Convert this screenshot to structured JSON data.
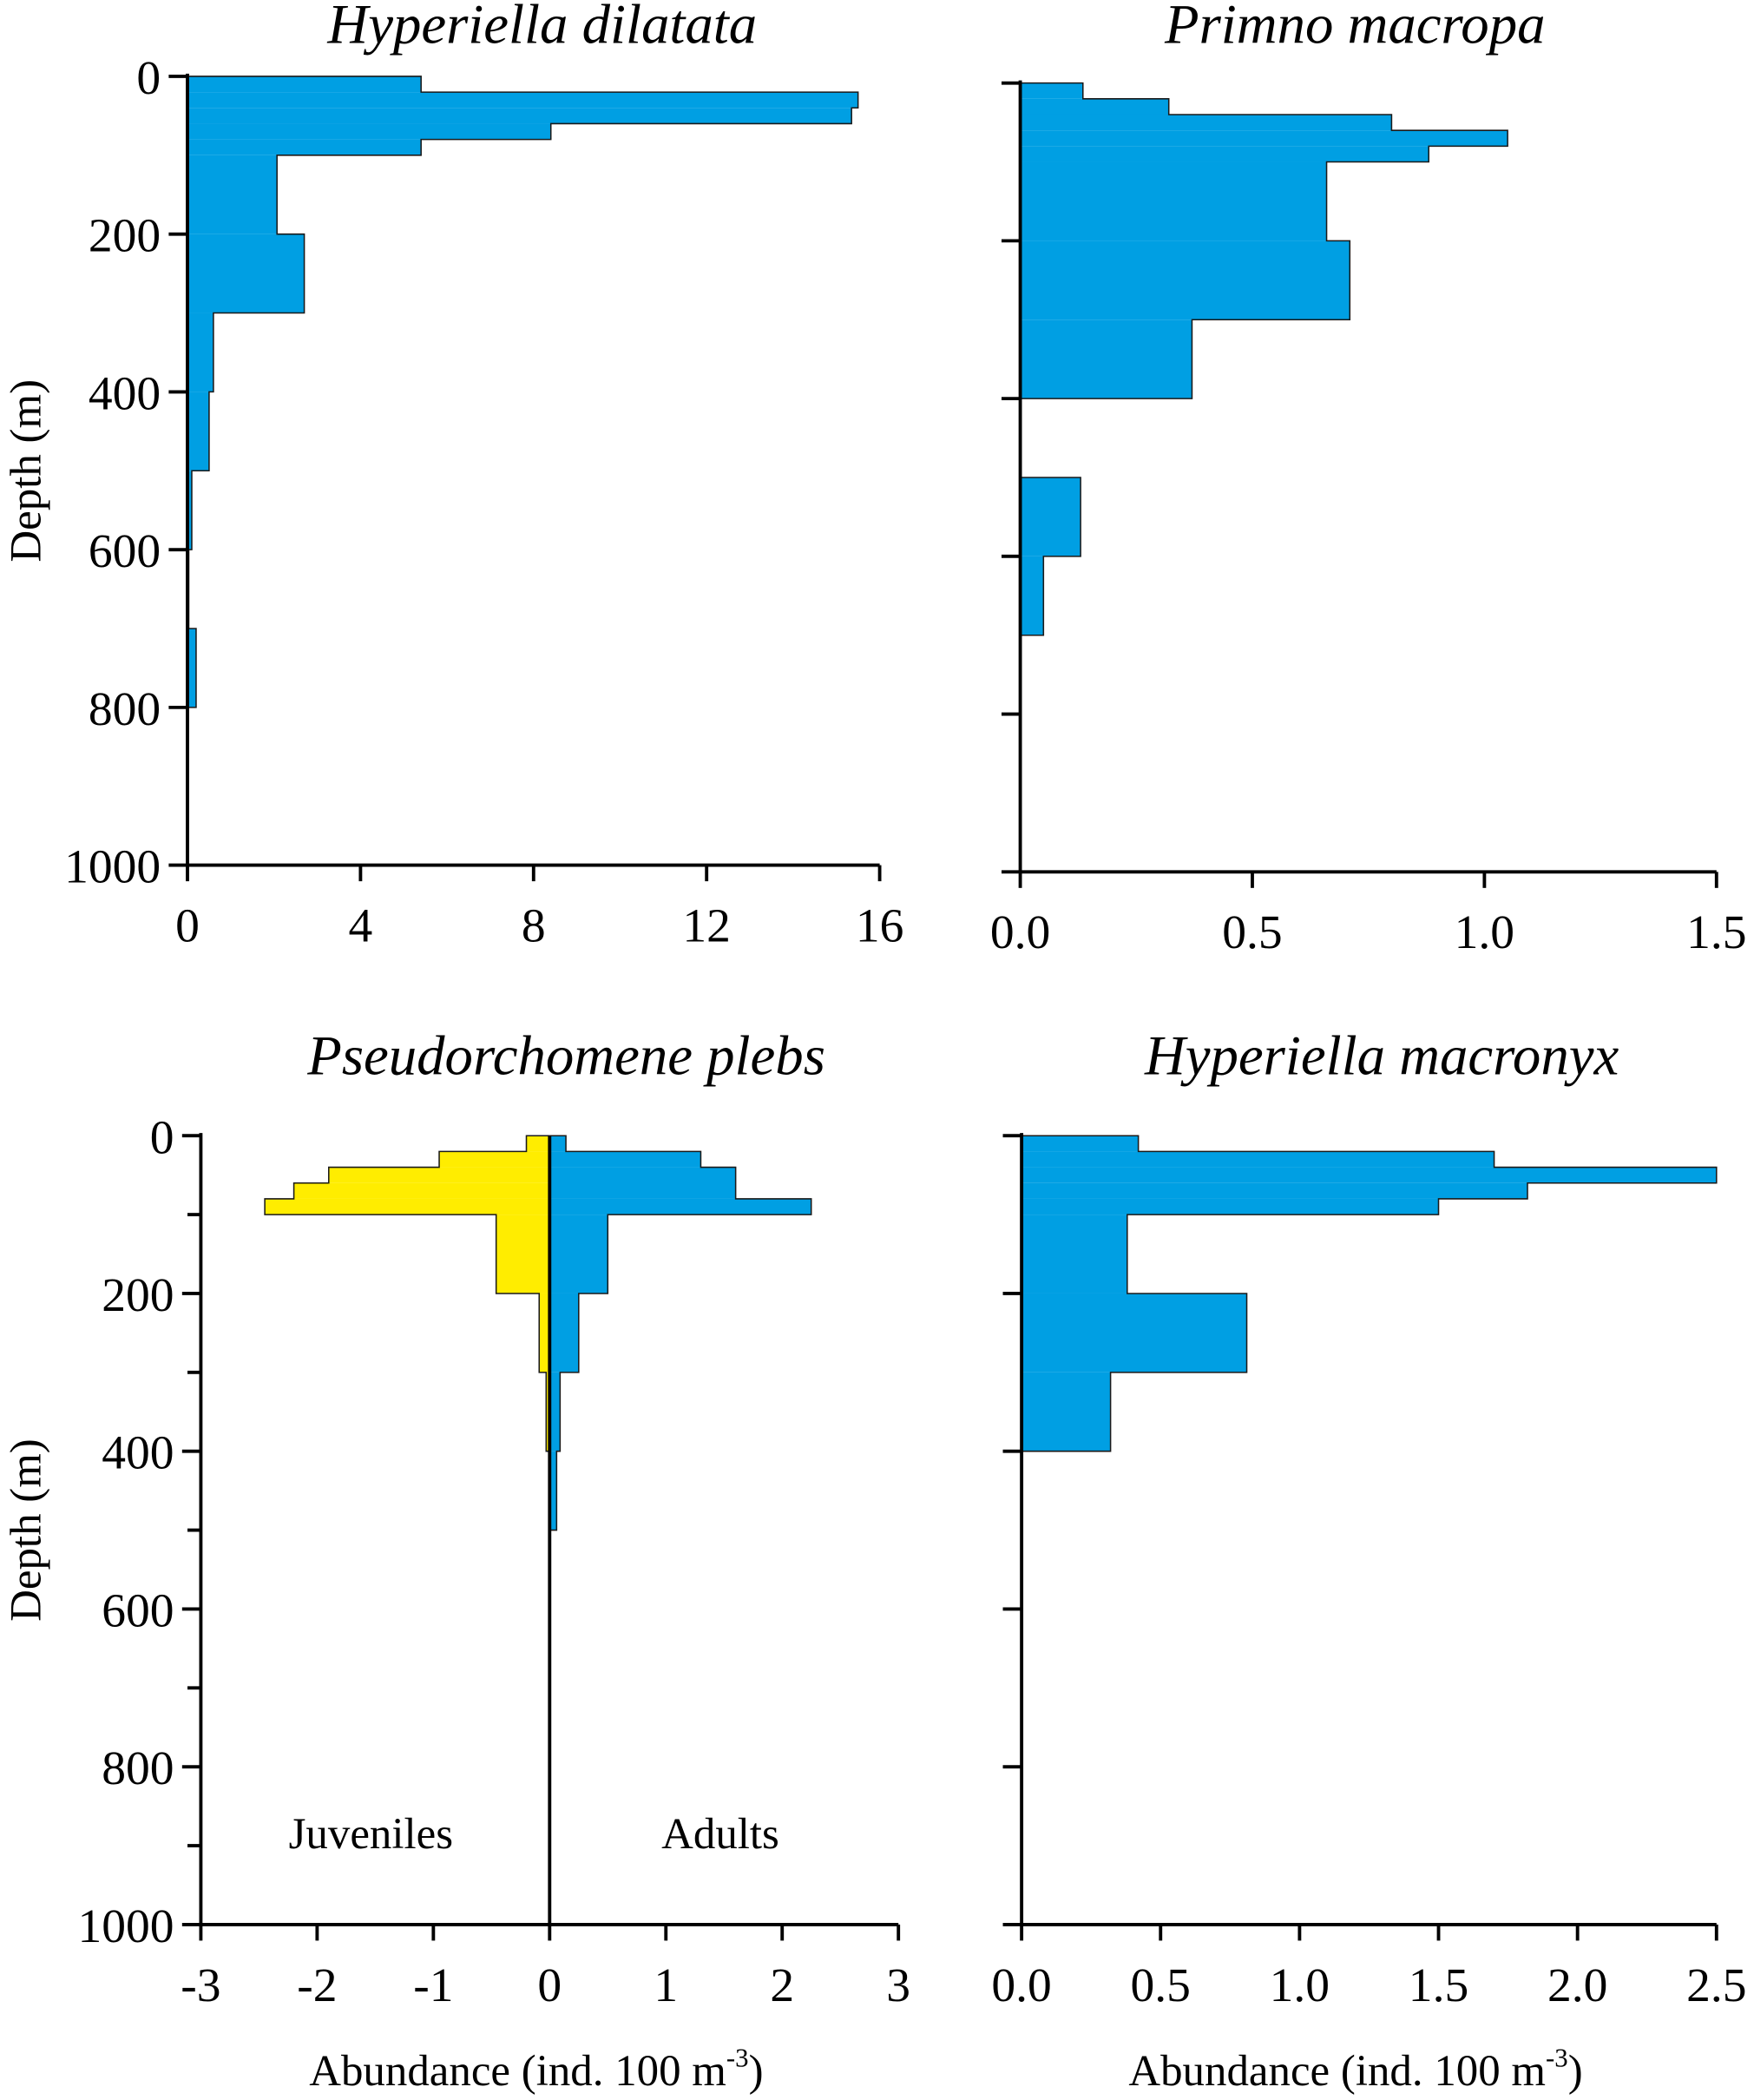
{
  "colors": {
    "adults": "#009fe3",
    "juveniles": "#ffed00",
    "axis": "#000000"
  },
  "chart_data": [
    {
      "type": "bar",
      "orientation": "horizontal-step-profile",
      "title": "Hyperiella dilatata",
      "ylabel": "Depth (m)",
      "xlabel": "",
      "xlim": [
        0,
        16
      ],
      "ylim": [
        0,
        1000
      ],
      "xticks": [
        "0",
        "4",
        "8",
        "12",
        "16"
      ],
      "yticks": [
        "0",
        "200",
        "400",
        "600",
        "800",
        "1000"
      ],
      "series": [
        {
          "name": "Abundance",
          "color_key": "adults",
          "bins": [
            [
              0,
              20,
              5.4
            ],
            [
              20,
              40,
              15.5
            ],
            [
              40,
              60,
              15.35
            ],
            [
              60,
              80,
              8.4
            ],
            [
              80,
              100,
              5.4
            ],
            [
              100,
              200,
              2.07
            ],
            [
              200,
              300,
              2.7
            ],
            [
              300,
              400,
              0.6
            ],
            [
              400,
              500,
              0.5
            ],
            [
              500,
              600,
              0.1
            ],
            [
              600,
              700,
              0.03
            ],
            [
              700,
              800,
              0.2
            ],
            [
              800,
              1000,
              0
            ]
          ]
        }
      ]
    },
    {
      "type": "bar",
      "orientation": "horizontal-step-profile",
      "title": "Primno macropa",
      "ylabel": "",
      "xlabel": "",
      "xlim": [
        0,
        1.5
      ],
      "ylim": [
        0,
        1000
      ],
      "xticks": [
        "0.0",
        "0.5",
        "1.0",
        "1.5"
      ],
      "yticks": [],
      "series": [
        {
          "name": "Abundance",
          "color_key": "adults",
          "bins": [
            [
              0,
              20,
              0.135
            ],
            [
              20,
              40,
              0.32
            ],
            [
              40,
              60,
              0.8
            ],
            [
              60,
              80,
              1.05
            ],
            [
              80,
              100,
              0.88
            ],
            [
              100,
              200,
              0.66
            ],
            [
              200,
              300,
              0.71
            ],
            [
              300,
              400,
              0.37
            ],
            [
              400,
              500,
              0
            ],
            [
              500,
              600,
              0.13
            ],
            [
              600,
              700,
              0.05
            ],
            [
              700,
              1000,
              0
            ]
          ]
        }
      ]
    },
    {
      "type": "bar",
      "orientation": "horizontal-step-profile",
      "title": "Pseudorchomene plebs",
      "ylabel": "Depth (m)",
      "xlabel": "Abundance (ind. 100 m",
      "xlabel_sup": "-3",
      "xlabel_end": ")",
      "xlim": [
        -3,
        3
      ],
      "ylim": [
        0,
        1000
      ],
      "xticks": [
        "-3",
        "-2",
        "-1",
        "0",
        "1",
        "2",
        "3"
      ],
      "yticks": [
        "0",
        "200",
        "400",
        "600",
        "800",
        "1000"
      ],
      "annotations": [
        "Juveniles",
        "Adults"
      ],
      "series": [
        {
          "name": "Juveniles",
          "color_key": "juveniles",
          "bins": [
            [
              0,
              20,
              -0.2
            ],
            [
              20,
              40,
              -0.95
            ],
            [
              40,
              60,
              -1.9
            ],
            [
              60,
              80,
              -2.2
            ],
            [
              80,
              100,
              -2.45
            ],
            [
              100,
              200,
              -0.46
            ],
            [
              200,
              300,
              -0.09
            ],
            [
              300,
              400,
              -0.03
            ]
          ]
        },
        {
          "name": "Adults",
          "color_key": "adults",
          "bins": [
            [
              0,
              20,
              0.14
            ],
            [
              20,
              40,
              1.3
            ],
            [
              40,
              80,
              1.6
            ],
            [
              80,
              100,
              2.25
            ],
            [
              100,
              200,
              0.5
            ],
            [
              200,
              300,
              0.25
            ],
            [
              300,
              400,
              0.09
            ],
            [
              400,
              500,
              0.06
            ]
          ]
        }
      ]
    },
    {
      "type": "bar",
      "orientation": "horizontal-step-profile",
      "title": "Hyperiella macronyx",
      "ylabel": "",
      "xlabel": "Abundance (ind. 100 m",
      "xlabel_sup": "-3",
      "xlabel_end": ")",
      "xlim": [
        0,
        2.5
      ],
      "ylim": [
        0,
        1000
      ],
      "xticks": [
        "0.0",
        "0.5",
        "1.0",
        "1.5",
        "2.0",
        "2.5"
      ],
      "yticks": [],
      "series": [
        {
          "name": "Abundance",
          "color_key": "adults",
          "bins": [
            [
              0,
              20,
              0.42
            ],
            [
              20,
              40,
              1.7
            ],
            [
              40,
              60,
              2.5
            ],
            [
              60,
              80,
              1.82
            ],
            [
              80,
              100,
              1.5
            ],
            [
              100,
              200,
              0.38
            ],
            [
              200,
              300,
              0.81
            ],
            [
              300,
              400,
              0.32
            ]
          ]
        }
      ]
    }
  ]
}
